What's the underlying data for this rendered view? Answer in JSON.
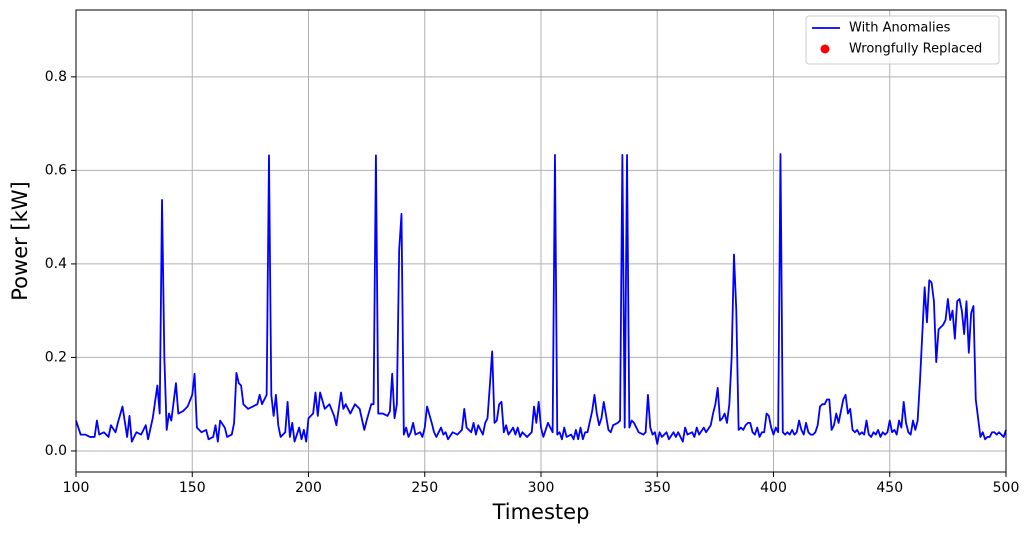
{
  "chart_data": {
    "type": "line",
    "xlabel": "Timestep",
    "ylabel": "Power [kW]",
    "xlim": [
      100,
      500
    ],
    "ylim": [
      -0.045,
      0.943
    ],
    "xticks": [
      100,
      150,
      200,
      250,
      300,
      350,
      400,
      450,
      500
    ],
    "yticks": [
      {
        "value": 0,
        "label": "0.0"
      },
      0.2,
      0.4,
      0.6,
      0.8
    ],
    "grid": true,
    "legend": "upper right",
    "series": [
      {
        "name": "With Anomalies",
        "type": "line",
        "color": "#0000ff",
        "x": [
          100,
          102,
          104,
          106,
          108,
          109,
          110,
          112,
          114,
          115,
          117,
          118,
          120,
          122,
          123,
          124,
          126,
          128,
          130,
          131,
          133,
          135,
          136,
          137,
          138,
          139,
          140,
          141,
          143,
          144,
          146,
          148,
          150,
          151,
          152,
          154,
          156,
          157,
          159,
          160,
          161,
          162,
          164,
          165,
          167,
          168,
          169,
          170,
          171,
          172,
          174,
          176,
          178,
          179,
          180,
          182,
          183,
          184,
          185,
          186,
          187,
          188,
          190,
          191,
          192,
          193,
          194,
          196,
          197,
          198,
          199,
          200,
          202,
          203,
          204,
          205,
          207,
          209,
          211,
          212,
          214,
          215,
          216,
          218,
          220,
          222,
          224,
          225,
          227,
          228,
          229,
          230,
          232,
          234,
          235,
          236,
          237,
          238,
          239,
          240,
          241,
          242,
          243,
          244,
          245,
          246,
          248,
          249,
          250,
          251,
          253,
          254,
          255,
          257,
          258,
          259,
          260,
          262,
          264,
          266,
          267,
          268,
          270,
          271,
          272,
          273,
          275,
          276,
          277,
          278,
          279,
          280,
          281,
          282,
          283,
          284,
          285,
          286,
          288,
          289,
          290,
          291,
          292,
          294,
          296,
          297,
          298,
          299,
          300,
          301,
          302,
          303,
          304,
          305,
          306,
          307,
          308,
          309,
          310,
          311,
          313,
          314,
          315,
          316,
          317,
          318,
          319,
          320,
          322,
          323,
          324,
          325,
          326,
          327,
          328,
          329,
          330,
          331,
          333,
          334,
          335,
          336,
          337,
          338,
          339,
          340,
          341,
          342,
          344,
          345,
          346,
          347,
          348,
          349,
          350,
          351,
          352,
          354,
          355,
          357,
          358,
          359,
          360,
          361,
          362,
          363,
          365,
          366,
          367,
          368,
          370,
          371,
          373,
          374,
          375,
          376,
          377,
          378,
          379,
          380,
          381,
          382,
          383,
          384,
          385,
          386,
          387,
          388,
          389,
          390,
          391,
          392,
          393,
          394,
          395,
          396,
          397,
          398,
          399,
          400,
          401,
          402,
          403,
          404,
          405,
          406,
          407,
          408,
          409,
          410,
          411,
          412,
          413,
          414,
          415,
          416,
          417,
          418,
          419,
          420,
          421,
          422,
          423,
          424,
          425,
          426,
          427,
          428,
          429,
          430,
          431,
          432,
          433,
          434,
          435,
          436,
          437,
          438,
          439,
          440,
          441,
          442,
          443,
          444,
          445,
          446,
          447,
          448,
          449,
          450,
          451,
          452,
          453,
          454,
          455,
          456,
          457,
          458,
          459,
          460,
          461,
          462,
          463,
          464,
          465,
          466,
          467,
          468,
          469,
          470,
          471,
          472,
          473,
          474,
          475,
          476,
          477,
          478,
          479,
          480,
          481,
          482,
          483,
          484,
          485,
          486,
          487,
          488,
          489,
          490,
          491,
          492,
          493,
          494,
          495,
          496,
          497,
          498,
          499,
          500
        ],
        "values": [
          0.065,
          0.035,
          0.035,
          0.03,
          0.03,
          0.065,
          0.035,
          0.04,
          0.03,
          0.055,
          0.04,
          0.06,
          0.095,
          0.03,
          0.075,
          0.02,
          0.04,
          0.035,
          0.055,
          0.025,
          0.07,
          0.14,
          0.08,
          0.537,
          0.2,
          0.045,
          0.08,
          0.065,
          0.145,
          0.08,
          0.085,
          0.095,
          0.12,
          0.165,
          0.05,
          0.04,
          0.045,
          0.025,
          0.03,
          0.055,
          0.02,
          0.065,
          0.05,
          0.03,
          0.035,
          0.06,
          0.167,
          0.145,
          0.14,
          0.1,
          0.09,
          0.095,
          0.1,
          0.12,
          0.1,
          0.12,
          0.632,
          0.12,
          0.075,
          0.12,
          0.055,
          0.03,
          0.04,
          0.105,
          0.03,
          0.06,
          0.02,
          0.05,
          0.025,
          0.045,
          0.02,
          0.07,
          0.08,
          0.125,
          0.075,
          0.125,
          0.09,
          0.1,
          0.075,
          0.055,
          0.125,
          0.09,
          0.1,
          0.08,
          0.1,
          0.09,
          0.045,
          0.065,
          0.1,
          0.1,
          0.632,
          0.08,
          0.08,
          0.075,
          0.085,
          0.165,
          0.07,
          0.1,
          0.43,
          0.507,
          0.035,
          0.05,
          0.03,
          0.04,
          0.06,
          0.035,
          0.04,
          0.03,
          0.05,
          0.095,
          0.06,
          0.04,
          0.03,
          0.05,
          0.035,
          0.04,
          0.025,
          0.04,
          0.035,
          0.045,
          0.09,
          0.05,
          0.04,
          0.06,
          0.035,
          0.055,
          0.035,
          0.06,
          0.07,
          0.14,
          0.213,
          0.06,
          0.065,
          0.1,
          0.105,
          0.04,
          0.055,
          0.035,
          0.05,
          0.035,
          0.05,
          0.03,
          0.04,
          0.03,
          0.04,
          0.095,
          0.06,
          0.105,
          0.05,
          0.03,
          0.045,
          0.06,
          0.05,
          0.04,
          0.633,
          0.035,
          0.04,
          0.025,
          0.05,
          0.03,
          0.035,
          0.025,
          0.045,
          0.025,
          0.05,
          0.025,
          0.04,
          0.04,
          0.085,
          0.12,
          0.08,
          0.055,
          0.07,
          0.105,
          0.075,
          0.045,
          0.04,
          0.055,
          0.06,
          0.065,
          0.633,
          0.05,
          0.633,
          0.05,
          0.065,
          0.06,
          0.05,
          0.04,
          0.035,
          0.04,
          0.12,
          0.05,
          0.035,
          0.04,
          0.015,
          0.04,
          0.03,
          0.04,
          0.025,
          0.04,
          0.03,
          0.04,
          0.03,
          0.02,
          0.05,
          0.035,
          0.04,
          0.03,
          0.05,
          0.035,
          0.05,
          0.04,
          0.055,
          0.08,
          0.1,
          0.135,
          0.065,
          0.07,
          0.08,
          0.06,
          0.1,
          0.2,
          0.42,
          0.3,
          0.045,
          0.05,
          0.045,
          0.055,
          0.06,
          0.06,
          0.04,
          0.035,
          0.05,
          0.03,
          0.04,
          0.04,
          0.08,
          0.075,
          0.05,
          0.035,
          0.05,
          0.04,
          0.635,
          0.04,
          0.035,
          0.04,
          0.035,
          0.045,
          0.035,
          0.04,
          0.065,
          0.045,
          0.035,
          0.06,
          0.04,
          0.035,
          0.035,
          0.04,
          0.055,
          0.095,
          0.1,
          0.1,
          0.11,
          0.11,
          0.045,
          0.055,
          0.08,
          0.06,
          0.085,
          0.11,
          0.12,
          0.08,
          0.09,
          0.045,
          0.04,
          0.045,
          0.035,
          0.04,
          0.035,
          0.065,
          0.035,
          0.03,
          0.04,
          0.035,
          0.045,
          0.03,
          0.04,
          0.035,
          0.04,
          0.065,
          0.04,
          0.045,
          0.035,
          0.065,
          0.05,
          0.105,
          0.06,
          0.04,
          0.035,
          0.065,
          0.045,
          0.065,
          0.15,
          0.25,
          0.35,
          0.275,
          0.365,
          0.36,
          0.32,
          0.19,
          0.26,
          0.265,
          0.27,
          0.28,
          0.325,
          0.28,
          0.3,
          0.24,
          0.32,
          0.325,
          0.3,
          0.25,
          0.32,
          0.21,
          0.295,
          0.31,
          0.11,
          0.07,
          0.03,
          0.04,
          0.025,
          0.03,
          0.03,
          0.04,
          0.04,
          0.035,
          0.04,
          0.035,
          0.03,
          0.045
        ]
      },
      {
        "name": "Wrongfully Replaced",
        "type": "scatter",
        "color": "#ff0000",
        "x": [],
        "values": []
      }
    ]
  }
}
